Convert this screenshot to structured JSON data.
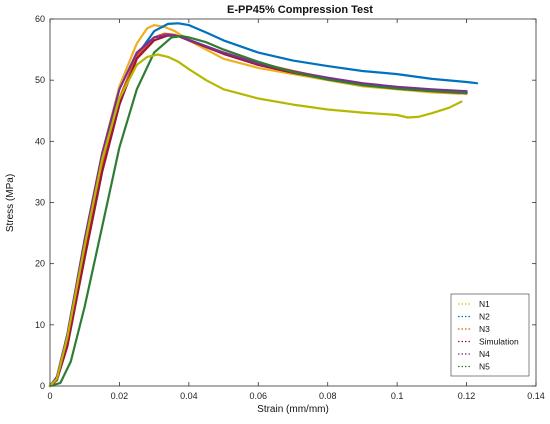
{
  "chart_data": {
    "type": "line",
    "title": "E-PP45% Compression Test",
    "xlabel": "Strain (mm/mm)",
    "ylabel": "Stress (MPa)",
    "xlim": [
      0,
      0.14
    ],
    "ylim": [
      0,
      60
    ],
    "xticks": [
      0,
      0.02,
      0.04,
      0.06,
      0.08,
      0.1,
      0.12,
      0.14
    ],
    "xtick_labels": [
      "0",
      "0.02",
      "0.04",
      "0.06",
      "0.08",
      "0.1",
      "0.12",
      "0.14"
    ],
    "yticks": [
      0,
      10,
      20,
      30,
      40,
      50,
      60
    ],
    "ytick_labels": [
      "0",
      "10",
      "20",
      "30",
      "40",
      "50",
      "60"
    ],
    "grid": false,
    "legend_position": "bottom-right",
    "series": [
      {
        "name": "N1",
        "color": "#EDB120",
        "x": [
          0.0,
          0.002,
          0.005,
          0.01,
          0.015,
          0.02,
          0.025,
          0.028,
          0.03,
          0.033,
          0.036,
          0.04,
          0.05,
          0.06,
          0.07,
          0.08,
          0.09,
          0.1,
          0.11,
          0.118
        ],
        "y": [
          0,
          1,
          8,
          24,
          38,
          49,
          56,
          58.5,
          59,
          58.7,
          58,
          56.5,
          53.5,
          52,
          51,
          50,
          49,
          48.5,
          48,
          47.8
        ]
      },
      {
        "name": "N2",
        "color": "#0072BD",
        "x": [
          0.0,
          0.002,
          0.005,
          0.01,
          0.015,
          0.02,
          0.025,
          0.03,
          0.034,
          0.037,
          0.04,
          0.045,
          0.05,
          0.06,
          0.07,
          0.08,
          0.09,
          0.1,
          0.11,
          0.12,
          0.123
        ],
        "y": [
          0,
          1,
          7,
          21,
          35,
          46,
          54,
          58,
          59.2,
          59.3,
          59,
          57.8,
          56.5,
          54.5,
          53.2,
          52.3,
          51.5,
          51,
          50.2,
          49.7,
          49.5
        ]
      },
      {
        "name": "N3",
        "color": "#D95319",
        "x": [
          0.0,
          0.002,
          0.005,
          0.01,
          0.015,
          0.02,
          0.025,
          0.03,
          0.033,
          0.036,
          0.04,
          0.05,
          0.06,
          0.07,
          0.08,
          0.09,
          0.1,
          0.11,
          0.12
        ],
        "y": [
          0,
          1,
          7,
          22,
          36,
          47,
          54,
          57,
          57.6,
          57.4,
          56.5,
          54.5,
          52.8,
          51.5,
          50.3,
          49.3,
          48.6,
          48.2,
          47.8
        ]
      },
      {
        "name": "Simulation",
        "color": "#A2142F",
        "x": [
          0.0,
          0.002,
          0.005,
          0.01,
          0.015,
          0.02,
          0.025,
          0.03,
          0.034,
          0.037,
          0.04,
          0.05,
          0.06,
          0.07,
          0.08,
          0.09,
          0.1,
          0.11,
          0.12
        ],
        "y": [
          0,
          1,
          6.5,
          21,
          35,
          46,
          53.5,
          56.5,
          57.3,
          57.2,
          56.5,
          54.3,
          52.5,
          51.2,
          50.2,
          49.4,
          48.8,
          48.3,
          48
        ]
      },
      {
        "name": "N4",
        "color": "#7E2F8E",
        "x": [
          0.0,
          0.002,
          0.005,
          0.01,
          0.015,
          0.02,
          0.025,
          0.03,
          0.034,
          0.037,
          0.04,
          0.05,
          0.06,
          0.07,
          0.08,
          0.09,
          0.1,
          0.11,
          0.12
        ],
        "y": [
          0,
          1.5,
          8.5,
          24,
          38,
          48.5,
          54.5,
          57,
          57.4,
          57.2,
          56.6,
          54.5,
          52.7,
          51.4,
          50.4,
          49.5,
          48.9,
          48.5,
          48.2
        ]
      },
      {
        "name": "N5",
        "color": "#2E7D32",
        "x": [
          0.0,
          0.003,
          0.006,
          0.01,
          0.015,
          0.02,
          0.025,
          0.03,
          0.035,
          0.038,
          0.04,
          0.045,
          0.05,
          0.06,
          0.07,
          0.08,
          0.09,
          0.1,
          0.11,
          0.12
        ],
        "y": [
          0,
          0.5,
          4,
          13,
          26,
          39,
          48.5,
          54.5,
          57,
          57.2,
          57,
          56.2,
          55,
          53,
          51.3,
          50.1,
          49.2,
          48.6,
          48.2,
          47.9
        ]
      },
      {
        "name": "",
        "color": "#B5B800",
        "x": [
          0.0,
          0.002,
          0.005,
          0.01,
          0.015,
          0.02,
          0.025,
          0.028,
          0.031,
          0.034,
          0.037,
          0.04,
          0.045,
          0.05,
          0.06,
          0.07,
          0.08,
          0.09,
          0.1,
          0.103,
          0.106,
          0.11,
          0.115,
          0.1185
        ],
        "y": [
          0,
          1.2,
          8,
          23,
          37,
          47,
          52.5,
          53.8,
          54.2,
          53.8,
          53,
          51.8,
          50,
          48.5,
          47,
          46,
          45.2,
          44.7,
          44.3,
          43.9,
          44,
          44.6,
          45.5,
          46.5
        ]
      }
    ]
  }
}
